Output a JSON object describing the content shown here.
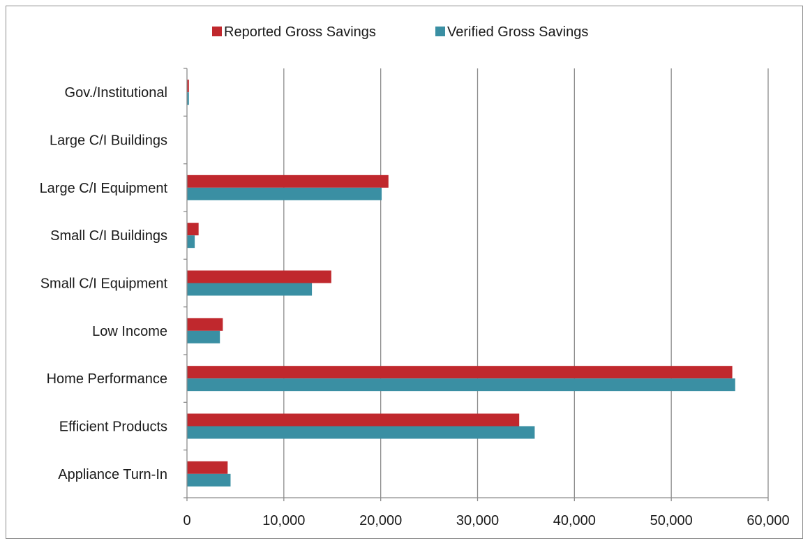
{
  "chart_data": {
    "type": "bar",
    "orientation": "horizontal",
    "title": "",
    "xlabel": "",
    "ylabel": "",
    "categories": [
      "Gov./Institutional",
      "Large C/I Buildings",
      "Large C/I Equipment",
      "Small C/I Buildings",
      "Small C/I Equipment",
      "Low Income",
      "Home Performance",
      "Efficient Products",
      "Appliance Turn-In"
    ],
    "series": [
      {
        "name": "Reported Gross Savings",
        "color": "#C0282D",
        "values": [
          200,
          0,
          20800,
          1200,
          14900,
          3700,
          56300,
          34300,
          4200
        ]
      },
      {
        "name": "Verified Gross Savings",
        "color": "#3A8FA3",
        "values": [
          200,
          0,
          20100,
          800,
          12900,
          3400,
          56600,
          35900,
          4500
        ]
      }
    ],
    "xlim": [
      0,
      60000
    ],
    "xticks": [
      0,
      10000,
      20000,
      30000,
      40000,
      50000,
      60000
    ],
    "xtick_labels": [
      "0",
      "10,000",
      "20,000",
      "30,000",
      "40,000",
      "50,000",
      "60,000"
    ],
    "grid": "vertical",
    "gridline_color": "#8c8c8c",
    "legend_position": "top-center"
  }
}
